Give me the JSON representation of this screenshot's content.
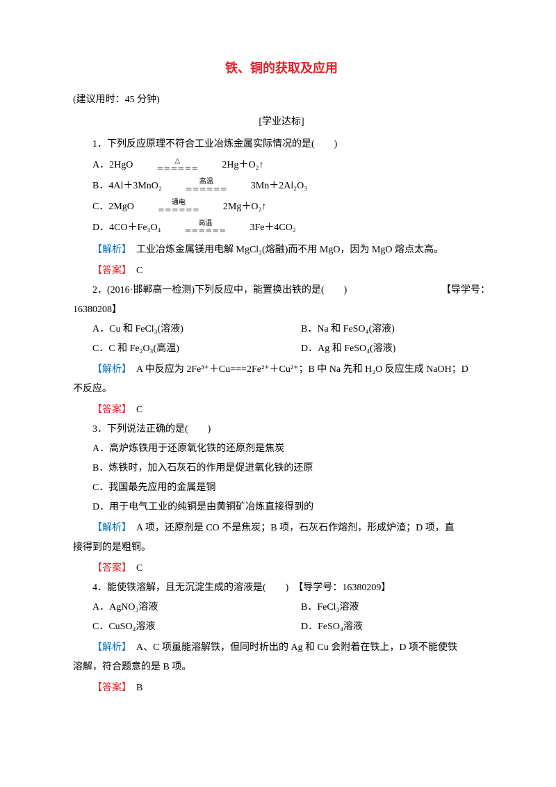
{
  "title": "铁、铜的获取及应用",
  "time_hint": "(建议用时：45 分钟)",
  "section_label": "[学业达标]",
  "colors": {
    "title": "#ed1c24",
    "explain_label": "#0070c0",
    "answer_label": "#ed1c24",
    "text": "#000000",
    "background": "#ffffff"
  },
  "fonts": {
    "body_family": "SimSun",
    "heading_family": "SimHei",
    "body_size_pt": 10.5,
    "title_size_pt": 14,
    "line_height": 2.0
  },
  "labels": {
    "explain": "【解析】",
    "answer": "【答案】"
  },
  "questions": [
    {
      "stem": "1．下列反应原理不符合工业冶炼金属实际情况的是(　　)",
      "options": [
        {
          "label": "A．2HgO",
          "cond_top": "△",
          "cond_bot": "＝＝＝＝＝＝",
          "right": "2Hg＋O₂↑"
        },
        {
          "label": "B．4Al＋3MnO₂",
          "cond_top": "高温",
          "cond_bot": "＝＝＝＝＝＝",
          "right": "3Mn＋2Al₂O₃"
        },
        {
          "label": "C．2MgO",
          "cond_top": "通电",
          "cond_bot": "＝＝＝＝＝＝",
          "right": "2Mg＋O₂↑"
        },
        {
          "label": "D．4CO＋Fe₃O₄",
          "cond_top": "高温",
          "cond_bot": "＝＝＝＝＝＝",
          "right": "3Fe＋4CO₂"
        }
      ],
      "explain": "　工业冶炼金属镁用电解 MgCl₂(熔融)而不用 MgO，因为 MgO 熔点太高。",
      "answer": "　C"
    },
    {
      "stem_left": "2．(2016·邯郸高一检测)下列反应中，能置换出铁的是(　　)",
      "stem_right": "【导学号：",
      "stem_cont": "16380208】",
      "options_2col": [
        {
          "a": "A．Cu 和 FeCl₃(溶液)",
          "b": "B．Na 和 FeSO₄(溶液)"
        },
        {
          "a": "C．C 和 Fe₂O₃(高温)",
          "b": "D．Ag 和 FeSO₄(溶液)"
        }
      ],
      "explain_lines": [
        "　A 中反应为 2Fe³⁺＋Cu===2Fe²⁺＋Cu²⁺；B 中 Na 先和 H₂O 反应生成 NaOH；D",
        "不反应。"
      ],
      "answer": "　C"
    },
    {
      "stem": "3．下列说法正确的是(　　)",
      "options_1col": [
        "A．高炉炼铁用于还原氧化铁的还原剂是焦炭",
        "B．炼铁时，加入石灰石的作用是促进氧化铁的还原",
        "C．我国最先应用的金属是铜",
        "D．用于电气工业的纯铜是由黄铜矿冶炼直接得到的"
      ],
      "explain_lines": [
        "　A 项，还原剂是 CO 不是焦炭；B 项，石灰石作熔剂，形成炉渣；D 项，直",
        "接得到的是粗铜。"
      ],
      "answer": "　C"
    },
    {
      "stem": "4．能使铁溶解，且无沉淀生成的溶液是(　　)　【导学号：16380209】",
      "options_2col": [
        {
          "a": "A．AgNO₃溶液",
          "b": "B．FeCl₃溶液"
        },
        {
          "a": "C．CuSO₄溶液",
          "b": "D．FeSO₄溶液"
        }
      ],
      "explain_lines": [
        "　A、C 项虽能溶解铁，但同时析出的 Ag 和 Cu 会附着在铁上，D 项不能使铁",
        "溶解，符合题意的是 B 项。"
      ],
      "answer": "　B"
    }
  ]
}
